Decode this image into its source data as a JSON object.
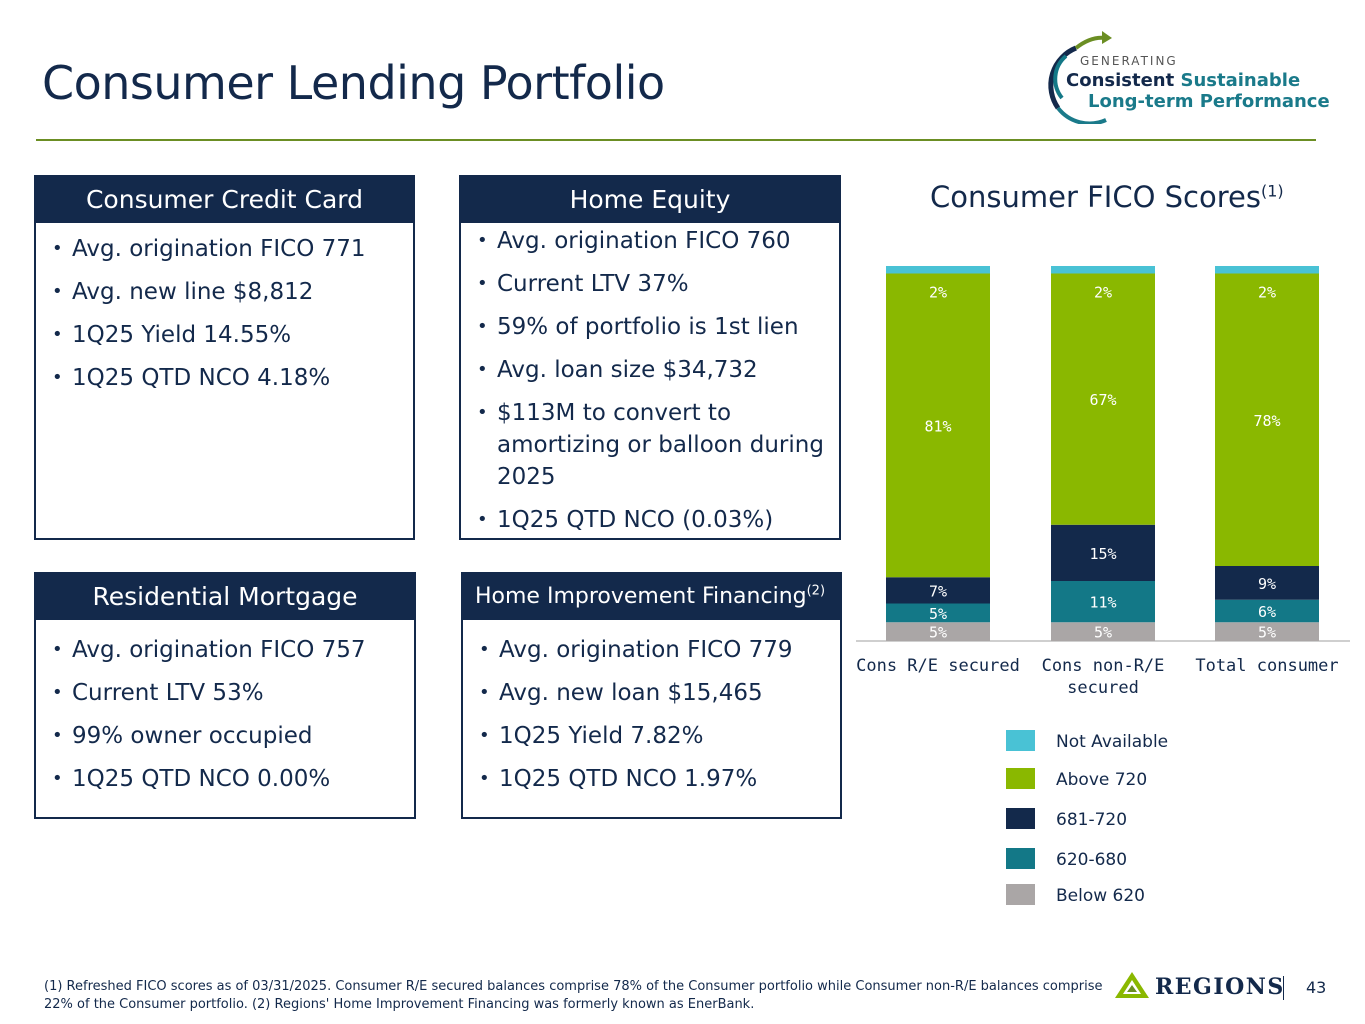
{
  "title": "Consumer Lending Portfolio",
  "logo": {
    "line1": "GENERATING",
    "line2a": "Consistent",
    "line2b": "Sustainable",
    "line3": "Long-term Performance"
  },
  "cards": {
    "credit_card": {
      "title": "Consumer Credit Card",
      "items": [
        "Avg. origination FICO 771",
        "Avg. new line $8,812",
        "1Q25 Yield 14.55%",
        "1Q25 QTD NCO 4.18%"
      ]
    },
    "home_equity": {
      "title": "Home Equity",
      "items": [
        "Avg. origination FICO 760",
        "Current LTV 37%",
        "59% of portfolio is 1st lien",
        "Avg. loan size $34,732",
        "$113M to convert to amortizing or balloon during 2025",
        "1Q25 QTD NCO (0.03%)"
      ]
    },
    "residential_mortgage": {
      "title": "Residential Mortgage",
      "items": [
        "Avg. origination FICO 757",
        "Current LTV 53%",
        "99% owner occupied",
        "1Q25 QTD NCO 0.00%"
      ]
    },
    "home_improvement": {
      "title": "Home Improvement Financing",
      "title_sup": "(2)",
      "items": [
        "Avg. origination FICO 779",
        "Avg. new loan $15,465",
        "1Q25 Yield 7.82%",
        "1Q25 QTD NCO 1.97%"
      ]
    }
  },
  "chart_data": {
    "type": "bar",
    "stacked": true,
    "title": "Consumer FICO Scores",
    "title_sup": "(1)",
    "categories": [
      "Cons R/E secured",
      "Cons non-R/E secured",
      "Total consumer"
    ],
    "series": [
      {
        "name": "Below 620",
        "color": "#aaa6a6",
        "values": [
          5,
          5,
          5
        ],
        "labels": [
          "5%",
          "5%",
          "5%"
        ]
      },
      {
        "name": "620-680",
        "color": "#137887",
        "values": [
          5,
          11,
          6
        ],
        "labels": [
          "5%",
          "11%",
          "6%"
        ]
      },
      {
        "name": "681-720",
        "color": "#13294b",
        "values": [
          7,
          15,
          9
        ],
        "labels": [
          "7%",
          "15%",
          "9%"
        ]
      },
      {
        "name": "Above 720",
        "color": "#8ab800",
        "values": [
          81,
          67,
          78
        ],
        "labels": [
          "81%",
          "67%",
          "78%"
        ]
      },
      {
        "name": "Not Available",
        "color": "#49c2d5",
        "values": [
          2,
          2,
          2
        ],
        "labels": [
          "2%",
          "2%",
          "2%"
        ]
      }
    ],
    "ylim": [
      0,
      100
    ],
    "legend_position": "bottom"
  },
  "legend_order": [
    "Not Available",
    "Above 720",
    "681-720",
    "620-680",
    "Below 620"
  ],
  "footnote": "(1) Refreshed FICO scores as of 03/31/2025. Consumer R/E secured balances comprise 78% of the Consumer portfolio while Consumer non-R/E balances comprise 22% of the Consumer portfolio. (2) Regions' Home Improvement Financing was formerly known as EnerBank.",
  "brand": "REGIONS",
  "page_number": "43",
  "colors": {
    "navy": "#13294b",
    "green": "#8ab800",
    "teal": "#137887",
    "cyan": "#49c2d5",
    "gray": "#aaa6a6",
    "rule": "#6b8e23"
  }
}
